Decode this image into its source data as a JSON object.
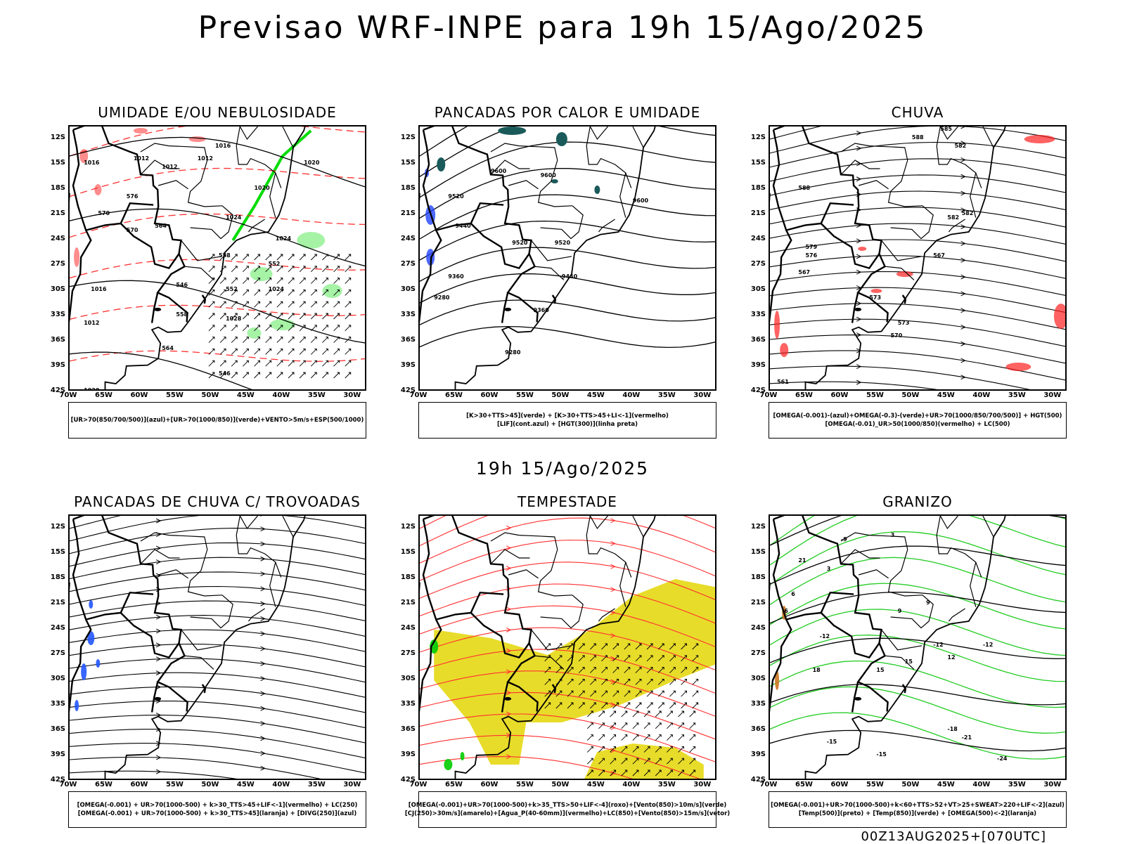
{
  "header": {
    "title": "Previsao WRF-INPE  para 19h 15/Ago/2025",
    "mid_date": "19h 15/Ago/2025",
    "run_stamp": "00Z13AUG2025+[070UTC]"
  },
  "axes": {
    "latitudes": [
      "12S",
      "15S",
      "18S",
      "21S",
      "24S",
      "27S",
      "30S",
      "33S",
      "36S",
      "39S",
      "42S"
    ],
    "longitudes": [
      "70W",
      "65W",
      "60W",
      "55W",
      "50W",
      "45W",
      "40W",
      "35W",
      "30W"
    ]
  },
  "panels": [
    {
      "title": "UMIDADE E/OU NEBULOSIDADE",
      "legend": [
        "[UR>70(850/700/500)](azul)+[UR>70(1000/850)](verde)+VENTO>5m/s+ESP(500/1000)"
      ],
      "contour_labels": [
        "1016",
        "1012",
        "1012",
        "1012",
        "1016",
        "1020",
        "1020",
        "1024",
        "1024",
        "1024",
        "1028",
        "1016",
        "1012",
        "1020",
        "576",
        "570",
        "570",
        "564",
        "558",
        "552",
        "546",
        "552",
        "558",
        "564",
        "546"
      ],
      "colors": {
        "thickness": "#ff3030",
        "low_humidity": "#00dd00",
        "mid_humidity": "#9999ff"
      }
    },
    {
      "title": "PANCADAS POR CALOR E UMIDADE",
      "legend": [
        "[K>30+TTS>45](verde) + [K>30+TTS>45+LI<-1](vermelho)",
        "[LIF](cont.azul) + [HGT(300)](linha preta)"
      ],
      "contour_labels": [
        "9600",
        "9600",
        "9600",
        "9520",
        "9520",
        "9520",
        "9440",
        "9440",
        "9360",
        "9360",
        "9280",
        "9280"
      ],
      "colors": {
        "unstable": "#1a5a5a",
        "lif": "#2244ff"
      }
    },
    {
      "title": "CHUVA",
      "legend": [
        "[OMEGA(-0.001)-(azul)+OMEGA(-0.3)-(verde)+UR>70(1000/850/700/500)] + HGT(500)",
        "[OMEGA(-0.01)_UR>50(1000/850)(vermelho) + LC(500)"
      ],
      "contour_labels": [
        "588",
        "582",
        "588",
        "582",
        "579",
        "576",
        "573",
        "570",
        "567",
        "567",
        "573",
        "561",
        "585",
        "582"
      ],
      "colors": {
        "rain": "#ff2020"
      }
    },
    {
      "title": "PANCADAS DE CHUVA C/ TROVOADAS",
      "legend": [
        "[OMEGA(-0.001) + UR>70(1000-500) + k>30_TTS>45+LIF<-1](vermelho) + LC(250)",
        "[OMEGA(-0.001) + UR>70(1000-500) + k>30_TTS>45](laranja) + [DIVG(250)](azul)"
      ],
      "contour_labels": [],
      "colors": {
        "showers": "#2255ff"
      }
    },
    {
      "title": "TEMPESTADE",
      "legend": [
        "[OMEGA(-0.001)+UR>70(1000-500)+k>35_TTS>50+LIF<-4](roxo)+[Vento(850)>10m/s](verde)",
        "[CJ(250)>30m/s](amarelo)+[Agua_P(40-60mm)](vermelho)+LC(850)+[Vento(850)>15m/s](vetor)"
      ],
      "contour_labels": [],
      "colors": {
        "jet": "#e8dc2a",
        "stream": "#ff3030",
        "storm": "#00cc00"
      }
    },
    {
      "title": "GRANIZO",
      "legend": [
        "[OMEGA(-0.001)+UR>70(1000-500)+k<60+TTS>52+VT>25+SWEAT>220+LIF<-2](azul)",
        "[Temp(500)](preto) + [Temp(850)](verde) + [OMEGA(500)<-2](laranja)"
      ],
      "contour_labels": [
        "-9",
        "-12",
        "-12",
        "-12",
        "-15",
        "-15",
        "-18",
        "-21",
        "-24",
        "12",
        "15",
        "15",
        "18",
        "21",
        "6",
        "9",
        "9",
        "3",
        "6",
        "3"
      ],
      "colors": {
        "t850": "#22cc22",
        "omega": "#cc7722"
      }
    }
  ]
}
